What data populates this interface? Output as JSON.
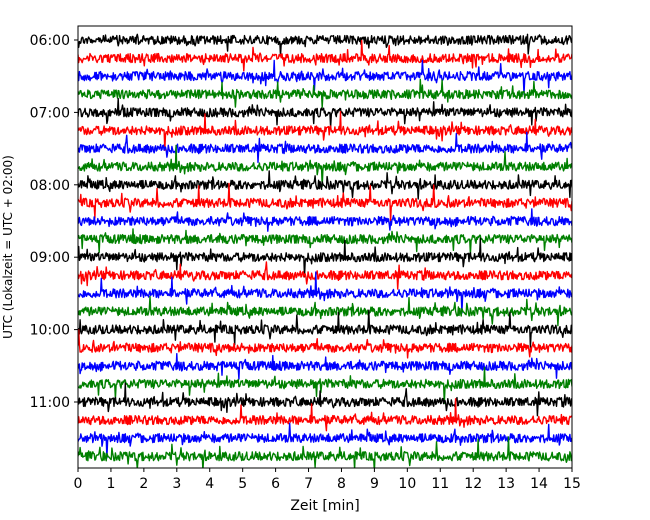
{
  "chart_data": {
    "type": "line",
    "title": "",
    "xlabel": "Zeit  [min]",
    "ylabel": "UTC (Lokalzeit = UTC + 02:00)",
    "xlim": [
      0,
      15
    ],
    "x_ticks": [
      0,
      1,
      2,
      3,
      4,
      5,
      6,
      7,
      8,
      9,
      10,
      11,
      12,
      13,
      14,
      15
    ],
    "x_tick_labels": [
      "0",
      "1",
      "2",
      "3",
      "4",
      "5",
      "6",
      "7",
      "8",
      "9",
      "10",
      "11",
      "12",
      "13",
      "14",
      "15"
    ],
    "y_tick_labels": [
      "06:00",
      "07:00",
      "08:00",
      "09:00",
      "10:00",
      "11:00"
    ],
    "trace_start_times": [
      "06:00",
      "06:15",
      "06:30",
      "06:45",
      "07:00",
      "07:15",
      "07:30",
      "07:45",
      "08:00",
      "08:15",
      "08:30",
      "08:45",
      "09:00",
      "09:15",
      "09:30",
      "09:45",
      "10:00",
      "10:15",
      "10:30",
      "10:45",
      "11:00",
      "11:15",
      "11:30",
      "11:45"
    ],
    "trace_colors": [
      "#000000",
      "#ff0000",
      "#0000ff",
      "#008000"
    ],
    "grid": false,
    "legend": "none"
  }
}
